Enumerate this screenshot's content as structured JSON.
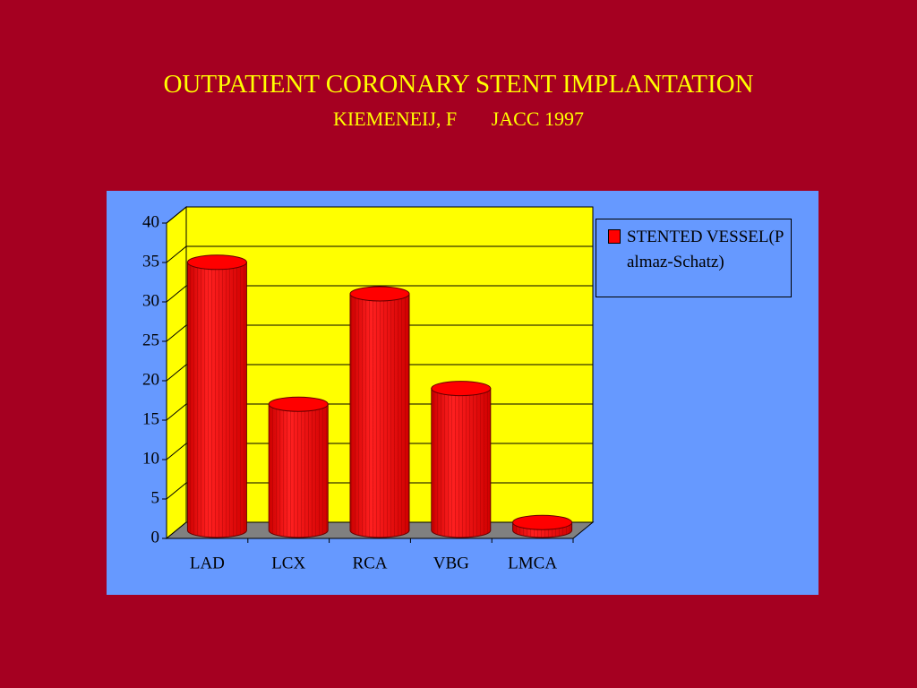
{
  "chart_data": {
    "type": "bar",
    "title": "OUTPATIENT CORONARY STENT IMPLANTATION",
    "subtitle": "KIEMENEIJ, F       JACC 1997",
    "categories": [
      "LAD",
      "LCX",
      "RCA",
      "VBG",
      "LMCA"
    ],
    "series": [
      {
        "name": "STENTED VESSEL(Palmaz-Schatz)",
        "color": "#ff0000",
        "values": [
          34,
          16,
          30,
          18,
          1
        ]
      }
    ],
    "ylim": [
      0,
      40
    ],
    "yticks": [
      0,
      5,
      10,
      15,
      20,
      25,
      30,
      35,
      40
    ],
    "grid": true,
    "legend": "right"
  }
}
